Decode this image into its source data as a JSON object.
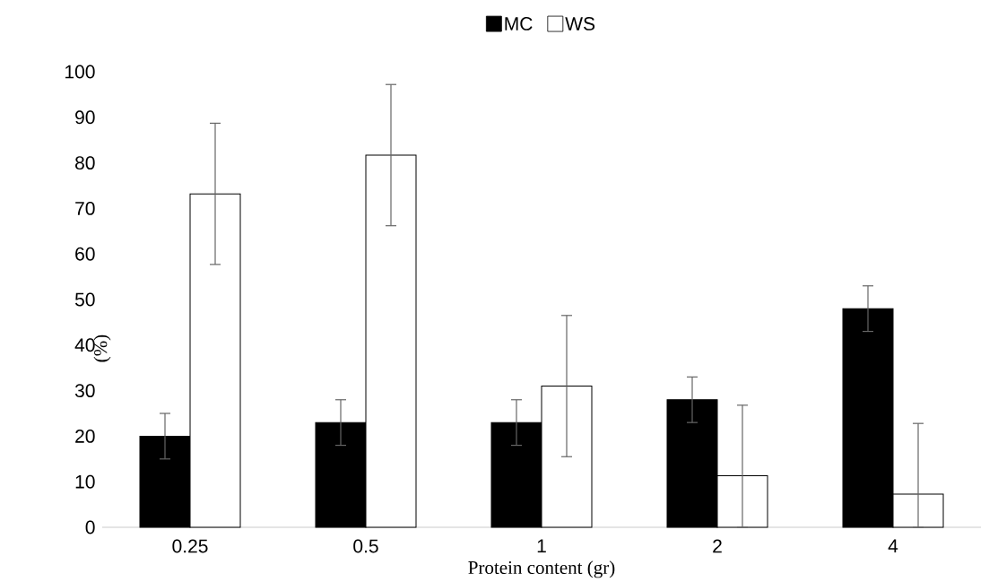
{
  "chart_data": {
    "type": "bar",
    "xlabel": "Protein content (gr)",
    "ylabel": "(%)",
    "categories": [
      "0.25",
      "0.5",
      "1",
      "2",
      "4"
    ],
    "series": [
      {
        "name": "MC",
        "color": "#000000",
        "values": [
          20,
          23,
          23,
          28,
          48
        ],
        "errors": [
          5,
          5,
          5,
          5,
          5
        ]
      },
      {
        "name": "WS",
        "color": "#ffffff",
        "values": [
          73.2,
          81.7,
          31,
          11.3,
          7.3
        ],
        "errors": [
          15.5,
          15.5,
          15.5,
          [
            0,
            26.8
          ],
          [
            0,
            22.8
          ]
        ]
      }
    ],
    "ylim": [
      0,
      100
    ],
    "yticks": [
      0,
      10,
      20,
      30,
      40,
      50,
      60,
      70,
      80,
      90,
      100
    ],
    "grid": false,
    "legend": "top"
  }
}
